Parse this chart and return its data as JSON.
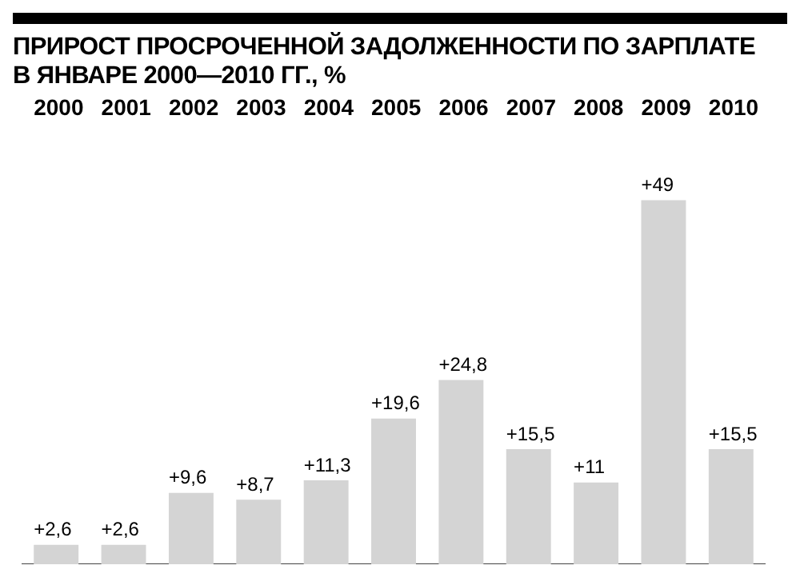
{
  "chart_data": {
    "type": "bar",
    "title": "ПРИРОСТ ПРОСРОЧЕННОЙ ЗАДОЛЖЕННОСТИ ПО ЗАРПЛАТЕ\nВ ЯНВАРЕ 2000—2010 ГГ., %",
    "categories": [
      "2000",
      "2001",
      "2002",
      "2003",
      "2004",
      "2005",
      "2006",
      "2007",
      "2008",
      "2009",
      "2010"
    ],
    "values": [
      2.6,
      2.6,
      9.6,
      8.7,
      11.3,
      19.6,
      24.8,
      15.5,
      11,
      49,
      15.5
    ],
    "value_labels": [
      "+2,6",
      "+2,6",
      "+9,6",
      "+8,7",
      "+11,3",
      "+19,6",
      "+24,8",
      "+15,5",
      "+11",
      "+49",
      "+15,5"
    ],
    "color": "#d4d4d4",
    "grid": false,
    "legend": false
  }
}
